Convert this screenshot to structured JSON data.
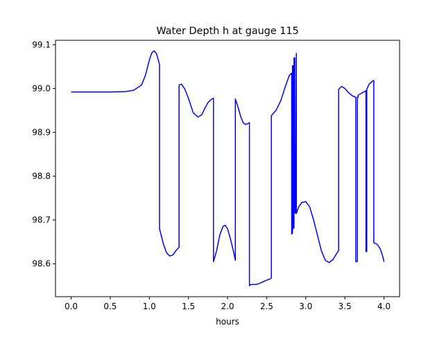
{
  "chart_data": {
    "type": "line",
    "title": "Water Depth h at gauge 115",
    "xlabel": "hours",
    "ylabel": "",
    "xlim": [
      -0.2,
      4.2
    ],
    "ylim": [
      98.525,
      99.11
    ],
    "xticks": [
      0.0,
      0.5,
      1.0,
      1.5,
      2.0,
      2.5,
      3.0,
      3.5,
      4.0
    ],
    "xtick_labels": [
      "0.0",
      "0.5",
      "1.0",
      "1.5",
      "2.0",
      "2.5",
      "3.0",
      "3.5",
      "4.0"
    ],
    "yticks": [
      98.6,
      98.7,
      98.8,
      98.9,
      99.0,
      99.1
    ],
    "ytick_labels": [
      "98.6",
      "98.7",
      "98.8",
      "98.9",
      "99.0",
      "99.1"
    ],
    "grid": false,
    "legend": "none",
    "series": [
      {
        "color": "#0000ff",
        "x": [
          0.0,
          0.5,
          0.7,
          0.8,
          0.9,
          0.95,
          1.0,
          1.03,
          1.06,
          1.09,
          1.11,
          1.13,
          1.13,
          1.18,
          1.22,
          1.26,
          1.3,
          1.34,
          1.38,
          1.38,
          1.41,
          1.45,
          1.5,
          1.56,
          1.62,
          1.67,
          1.71,
          1.75,
          1.79,
          1.82,
          1.82,
          1.86,
          1.9,
          1.94,
          1.97,
          2.0,
          2.04,
          2.08,
          2.1,
          2.1,
          2.13,
          2.17,
          2.2,
          2.23,
          2.26,
          2.28,
          2.28,
          2.3,
          2.37,
          2.43,
          2.49,
          2.56,
          2.56,
          2.62,
          2.68,
          2.74,
          2.79,
          2.82,
          2.82,
          2.83,
          2.83,
          2.84,
          2.84,
          2.85,
          2.85,
          2.86,
          2.86,
          2.87,
          2.88,
          2.88,
          2.91,
          2.95,
          3.0,
          3.05,
          3.1,
          3.15,
          3.2,
          3.25,
          3.3,
          3.35,
          3.4,
          3.42,
          3.42,
          3.46,
          3.5,
          3.55,
          3.6,
          3.64,
          3.64,
          3.66,
          3.66,
          3.67,
          3.67,
          3.72,
          3.77,
          3.77,
          3.78,
          3.78,
          3.81,
          3.86,
          3.87,
          3.87,
          3.91,
          3.95,
          3.98,
          4.0
        ],
        "y": [
          98.992,
          98.992,
          98.993,
          98.996,
          99.008,
          99.03,
          99.065,
          99.081,
          99.086,
          99.08,
          99.068,
          99.055,
          98.68,
          98.645,
          98.625,
          98.618,
          98.62,
          98.63,
          98.638,
          99.008,
          99.01,
          99.0,
          98.978,
          98.945,
          98.935,
          98.94,
          98.955,
          98.968,
          98.975,
          98.978,
          98.605,
          98.63,
          98.665,
          98.685,
          98.688,
          98.68,
          98.655,
          98.625,
          98.608,
          98.976,
          98.96,
          98.935,
          98.922,
          98.918,
          98.92,
          98.922,
          98.55,
          98.553,
          98.553,
          98.557,
          98.562,
          98.567,
          98.938,
          98.95,
          98.972,
          99.005,
          99.03,
          99.035,
          98.668,
          98.67,
          99.052,
          99.052,
          98.68,
          98.683,
          99.07,
          99.07,
          98.72,
          98.715,
          99.08,
          98.715,
          98.73,
          98.74,
          98.742,
          98.73,
          98.7,
          98.665,
          98.63,
          98.608,
          98.603,
          98.61,
          98.625,
          98.63,
          98.998,
          99.005,
          99.0,
          98.99,
          98.983,
          98.98,
          98.605,
          98.605,
          98.98,
          98.98,
          98.985,
          98.99,
          98.995,
          98.628,
          98.628,
          98.998,
          99.01,
          99.018,
          99.018,
          98.648,
          98.645,
          98.635,
          98.62,
          98.605
        ]
      }
    ]
  }
}
